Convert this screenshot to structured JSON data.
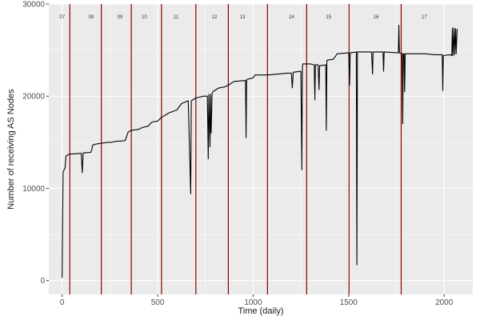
{
  "chart_data": {
    "type": "line",
    "title": "",
    "xlabel": "Time (daily)",
    "ylabel": "Number of receiving AS Nodes",
    "xlim": [
      -70,
      2150
    ],
    "ylim": [
      -1500,
      30000
    ],
    "x_ticks": [
      0,
      500,
      1000,
      1500,
      2000
    ],
    "y_ticks": [
      0,
      10000,
      20000,
      30000
    ],
    "grid": true,
    "colors": {
      "line": "#000000",
      "separator": "#8b0000",
      "panel": "#ebebeb",
      "grid": "#ffffff"
    },
    "separators": [
      40,
      205,
      362,
      520,
      700,
      870,
      1075,
      1280,
      1502,
      1775
    ],
    "year_labels": [
      {
        "text": "07",
        "x": 0
      },
      {
        "text": "08",
        "x": 152
      },
      {
        "text": "09",
        "x": 303
      },
      {
        "text": "10",
        "x": 430
      },
      {
        "text": "11",
        "x": 596
      },
      {
        "text": "12",
        "x": 797
      },
      {
        "text": "13",
        "x": 945
      },
      {
        "text": "14",
        "x": 1201
      },
      {
        "text": "15",
        "x": 1395
      },
      {
        "text": "16",
        "x": 1643
      },
      {
        "text": "17",
        "x": 1896
      }
    ],
    "series": [
      {
        "values": [
          [
            0,
            300
          ],
          [
            2,
            6000
          ],
          [
            5,
            11800
          ],
          [
            15,
            12200
          ],
          [
            20,
            13500
          ],
          [
            35,
            13700
          ],
          [
            60,
            13750
          ],
          [
            100,
            13800
          ],
          [
            105,
            11700
          ],
          [
            110,
            13850
          ],
          [
            150,
            13900
          ],
          [
            155,
            14200
          ],
          [
            160,
            14700
          ],
          [
            175,
            14800
          ],
          [
            205,
            14900
          ],
          [
            240,
            15000
          ],
          [
            260,
            15000
          ],
          [
            280,
            15100
          ],
          [
            320,
            15150
          ],
          [
            330,
            15200
          ],
          [
            345,
            16100
          ],
          [
            362,
            16300
          ],
          [
            400,
            16400
          ],
          [
            420,
            16600
          ],
          [
            450,
            16750
          ],
          [
            470,
            17200
          ],
          [
            500,
            17300
          ],
          [
            520,
            17700
          ],
          [
            560,
            18200
          ],
          [
            600,
            18500
          ],
          [
            625,
            19200
          ],
          [
            660,
            19500
          ],
          [
            673,
            9400
          ],
          [
            676,
            19500
          ],
          [
            700,
            19800
          ],
          [
            740,
            20000
          ],
          [
            760,
            20000
          ],
          [
            765,
            13200
          ],
          [
            768,
            20200
          ],
          [
            774,
            14500
          ],
          [
            777,
            20200
          ],
          [
            780,
            16000
          ],
          [
            785,
            20300
          ],
          [
            790,
            20500
          ],
          [
            820,
            20900
          ],
          [
            850,
            21000
          ],
          [
            870,
            21200
          ],
          [
            900,
            21600
          ],
          [
            960,
            21700
          ],
          [
            963,
            15500
          ],
          [
            966,
            21800
          ],
          [
            1000,
            22000
          ],
          [
            1010,
            22300
          ],
          [
            1080,
            22300
          ],
          [
            1180,
            22500
          ],
          [
            1200,
            22500
          ],
          [
            1205,
            20900
          ],
          [
            1210,
            22600
          ],
          [
            1250,
            22700
          ],
          [
            1255,
            12000
          ],
          [
            1258,
            23200
          ],
          [
            1260,
            23500
          ],
          [
            1300,
            23500
          ],
          [
            1320,
            23400
          ],
          [
            1323,
            19600
          ],
          [
            1326,
            23400
          ],
          [
            1340,
            23400
          ],
          [
            1345,
            20700
          ],
          [
            1348,
            23300
          ],
          [
            1380,
            23400
          ],
          [
            1383,
            16300
          ],
          [
            1386,
            23900
          ],
          [
            1420,
            24000
          ],
          [
            1440,
            24600
          ],
          [
            1500,
            24700
          ],
          [
            1505,
            21200
          ],
          [
            1508,
            24700
          ],
          [
            1540,
            24800
          ],
          [
            1543,
            1700
          ],
          [
            1546,
            24800
          ],
          [
            1620,
            24800
          ],
          [
            1625,
            22400
          ],
          [
            1628,
            24800
          ],
          [
            1680,
            24800
          ],
          [
            1683,
            22700
          ],
          [
            1686,
            24800
          ],
          [
            1760,
            24700
          ],
          [
            1763,
            27700
          ],
          [
            1766,
            24700
          ],
          [
            1780,
            24600
          ],
          [
            1783,
            17000
          ],
          [
            1786,
            24600
          ],
          [
            1790,
            24600
          ],
          [
            1793,
            20500
          ],
          [
            1796,
            24600
          ],
          [
            1850,
            24600
          ],
          [
            1900,
            24600
          ],
          [
            1950,
            24500
          ],
          [
            1990,
            24500
          ],
          [
            1993,
            20600
          ],
          [
            1996,
            24400
          ],
          [
            2030,
            24500
          ],
          [
            2040,
            24400
          ],
          [
            2043,
            27400
          ],
          [
            2046,
            24400
          ],
          [
            2052,
            27400
          ],
          [
            2055,
            24500
          ],
          [
            2060,
            27300
          ],
          [
            2063,
            24600
          ],
          [
            2068,
            27300
          ]
        ]
      }
    ]
  }
}
